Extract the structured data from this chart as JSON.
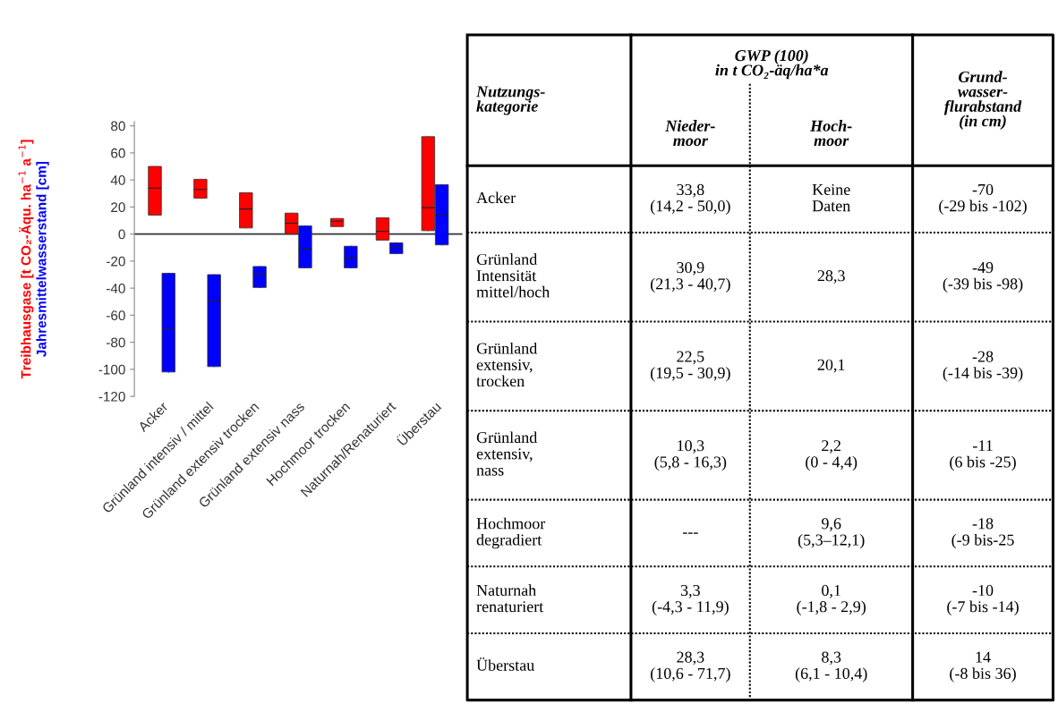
{
  "chart_data": [
    {
      "type": "box",
      "categories": [
        "Acker",
        "Grünland intensiv / mittel",
        "Grünland extensiv trocken",
        "Grünland extensiv nass",
        "Hochmoor trocken",
        "Naturnah/Renaturiert",
        "Überstau"
      ],
      "series": [
        {
          "name": "Treibhausgase [t CO₂-Äqu. ha$^{−1}$ a$^{−1}$]",
          "color": "#ff0000",
          "boxes": [
            {
              "low": 14,
              "q1": 14,
              "median": 34,
              "q3": 50,
              "high": 50
            },
            {
              "low": 26.5,
              "q1": 26.5,
              "median": 33,
              "q3": 40.5,
              "high": 40.5
            },
            {
              "low": 4.5,
              "q1": 4.5,
              "median": 18.5,
              "q3": 30.5,
              "high": 30.5
            },
            {
              "low": 0,
              "q1": 0,
              "median": 8,
              "q3": 15.5,
              "high": 15.5
            },
            {
              "low": 5.5,
              "q1": 5.5,
              "median": 9.5,
              "q3": 11.5,
              "high": 11.5
            },
            {
              "low": -4.5,
              "q1": -4.5,
              "median": 2,
              "q3": 12,
              "high": 12
            },
            {
              "low": 2.5,
              "q1": 2.5,
              "median": 19.5,
              "q3": 72,
              "high": 72
            }
          ]
        },
        {
          "name": "Jahresmittelwasserstand [cm]",
          "color": "#0000ff",
          "boxes": [
            {
              "low": -102,
              "q1": -102,
              "median": -70,
              "q3": -29,
              "high": -29
            },
            {
              "low": -98,
              "q1": -98,
              "median": -49.5,
              "q3": -30,
              "high": -30
            },
            {
              "low": -39.5,
              "q1": -39.5,
              "median": -29.5,
              "q3": -24,
              "high": -24
            },
            {
              "low": -25,
              "q1": -25,
              "median": -11,
              "q3": 6,
              "high": 6
            },
            {
              "low": -25,
              "q1": -25,
              "median": -17.5,
              "q3": -9,
              "high": -9
            },
            {
              "low": -14.5,
              "q1": -14.5,
              "median": -10,
              "q3": -6.5,
              "high": -6.5
            },
            {
              "low": -8,
              "q1": -8,
              "median": 14,
              "q3": 36.5,
              "high": 36.5
            }
          ]
        }
      ],
      "ylim": [
        -120,
        83
      ],
      "yticks": [
        -120,
        -100,
        -80,
        -60,
        -40,
        -20,
        0,
        20,
        40,
        60,
        80
      ],
      "ref_lines": [
        {
          "axis": "y",
          "value": 0,
          "color": "#333333"
        }
      ],
      "grid": false,
      "legend": false
    },
    {
      "type": "other",
      "categories": [
        "Nutzungs-\nkategorie",
        "Nieder-\nmoor",
        "Hoch-\nmoor",
        "Grund-\nwasser-\nflurabstand\n(in cm)"
      ],
      "annotations": [
        "GWP (100)\nin t CO₂-äq/ha*a"
      ],
      "y_categories": [
        "Acker",
        "Grünland\nIntensität\nmittel/hoch",
        "Grünland\nextensiv,\ntrocken",
        "Grünland\nextensiv,\nnass",
        "Hochmoor\ndegradiert",
        "Naturnah\nrenaturiert",
        "Überstau"
      ],
      "cell_labels": [
        [
          "33,8\n(14,2 - 50,0)",
          "Keine\nDaten",
          "-70\n(-29 bis -102)"
        ],
        [
          "30,9\n(21,3 - 40,7)",
          "28,3",
          "-49\n(-39 bis -98)"
        ],
        [
          "22,5\n(19,5 - 30,9)",
          "20,1",
          "-28\n(-14 bis -39)"
        ],
        [
          "10,3\n(5,8 - 16,3)",
          "2,2\n(0 - 4,4)",
          "-11\n(6 bis -25)"
        ],
        [
          "---",
          "9,6\n(5,3–12,1)",
          "-18\n(-9 bis-25"
        ],
        [
          "3,3\n(-4,3 - 11,9)",
          "0,1\n(-1,8 - 2,9)",
          "-10\n(-7 bis -14)"
        ],
        [
          "28,3\n(10,6 - 71,7)",
          "8,3\n(6,1 - 10,4)",
          "14\n(-8 bis 36)"
        ]
      ]
    }
  ]
}
